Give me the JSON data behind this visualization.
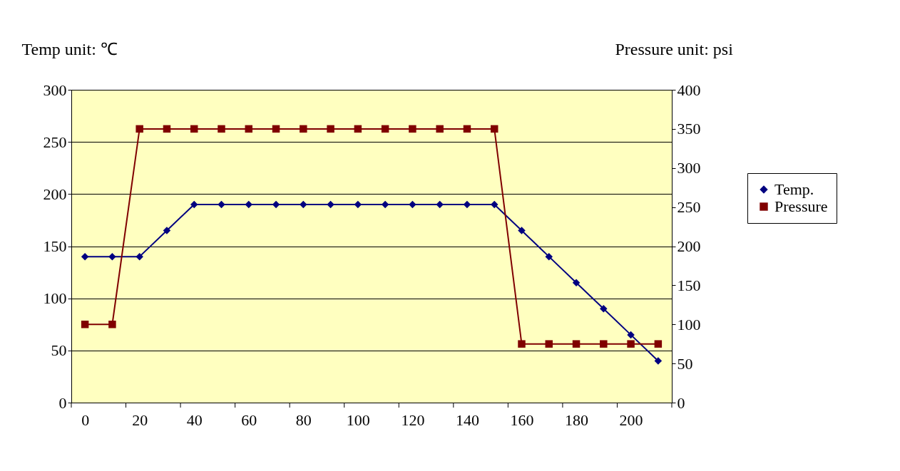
{
  "chart_data": {
    "type": "line",
    "ylabel": "Temp unit:  ℃",
    "y2label": "Pressure unit: psi",
    "x": [
      0,
      10,
      20,
      30,
      40,
      50,
      60,
      70,
      80,
      90,
      100,
      110,
      120,
      130,
      140,
      150,
      160,
      170,
      180,
      190,
      200,
      210
    ],
    "xlim": [
      -5,
      215
    ],
    "xticks": [
      0,
      20,
      40,
      60,
      80,
      100,
      120,
      140,
      160,
      180,
      200,
      {
        "value": -5,
        "label": null
      },
      {
        "value": 15,
        "label": null
      },
      {
        "value": 35,
        "label": null
      },
      {
        "value": 55,
        "label": null
      },
      {
        "value": 75,
        "label": null
      },
      {
        "value": 95,
        "label": null
      },
      {
        "value": 115,
        "label": null
      },
      {
        "value": 135,
        "label": null
      },
      {
        "value": 155,
        "label": null
      },
      {
        "value": 175,
        "label": null
      },
      {
        "value": 195,
        "label": null
      },
      {
        "value": 215,
        "label": null
      }
    ],
    "ylim": [
      0,
      300
    ],
    "yticks": [
      0,
      50,
      100,
      150,
      200,
      250,
      300
    ],
    "y2lim": [
      0,
      400
    ],
    "y2ticks": [
      0,
      50,
      100,
      150,
      200,
      250,
      300,
      350,
      400
    ],
    "grid": "y",
    "legend": "right",
    "line_style": "solid",
    "series": [
      {
        "name": "Temp.",
        "color": "#000080",
        "marker": "diamond",
        "values": [
          140,
          140,
          140,
          165,
          190,
          190,
          190,
          190,
          190,
          190,
          190,
          190,
          190,
          190,
          190,
          190,
          165,
          140,
          115,
          90,
          65,
          40
        ]
      },
      {
        "name": "Pressure",
        "color": "#800000",
        "marker": "square",
        "axis": "y2",
        "values": [
          100,
          100,
          350,
          350,
          350,
          350,
          350,
          350,
          350,
          350,
          350,
          350,
          350,
          350,
          350,
          350,
          75,
          75,
          75,
          75,
          75,
          75
        ]
      }
    ]
  }
}
